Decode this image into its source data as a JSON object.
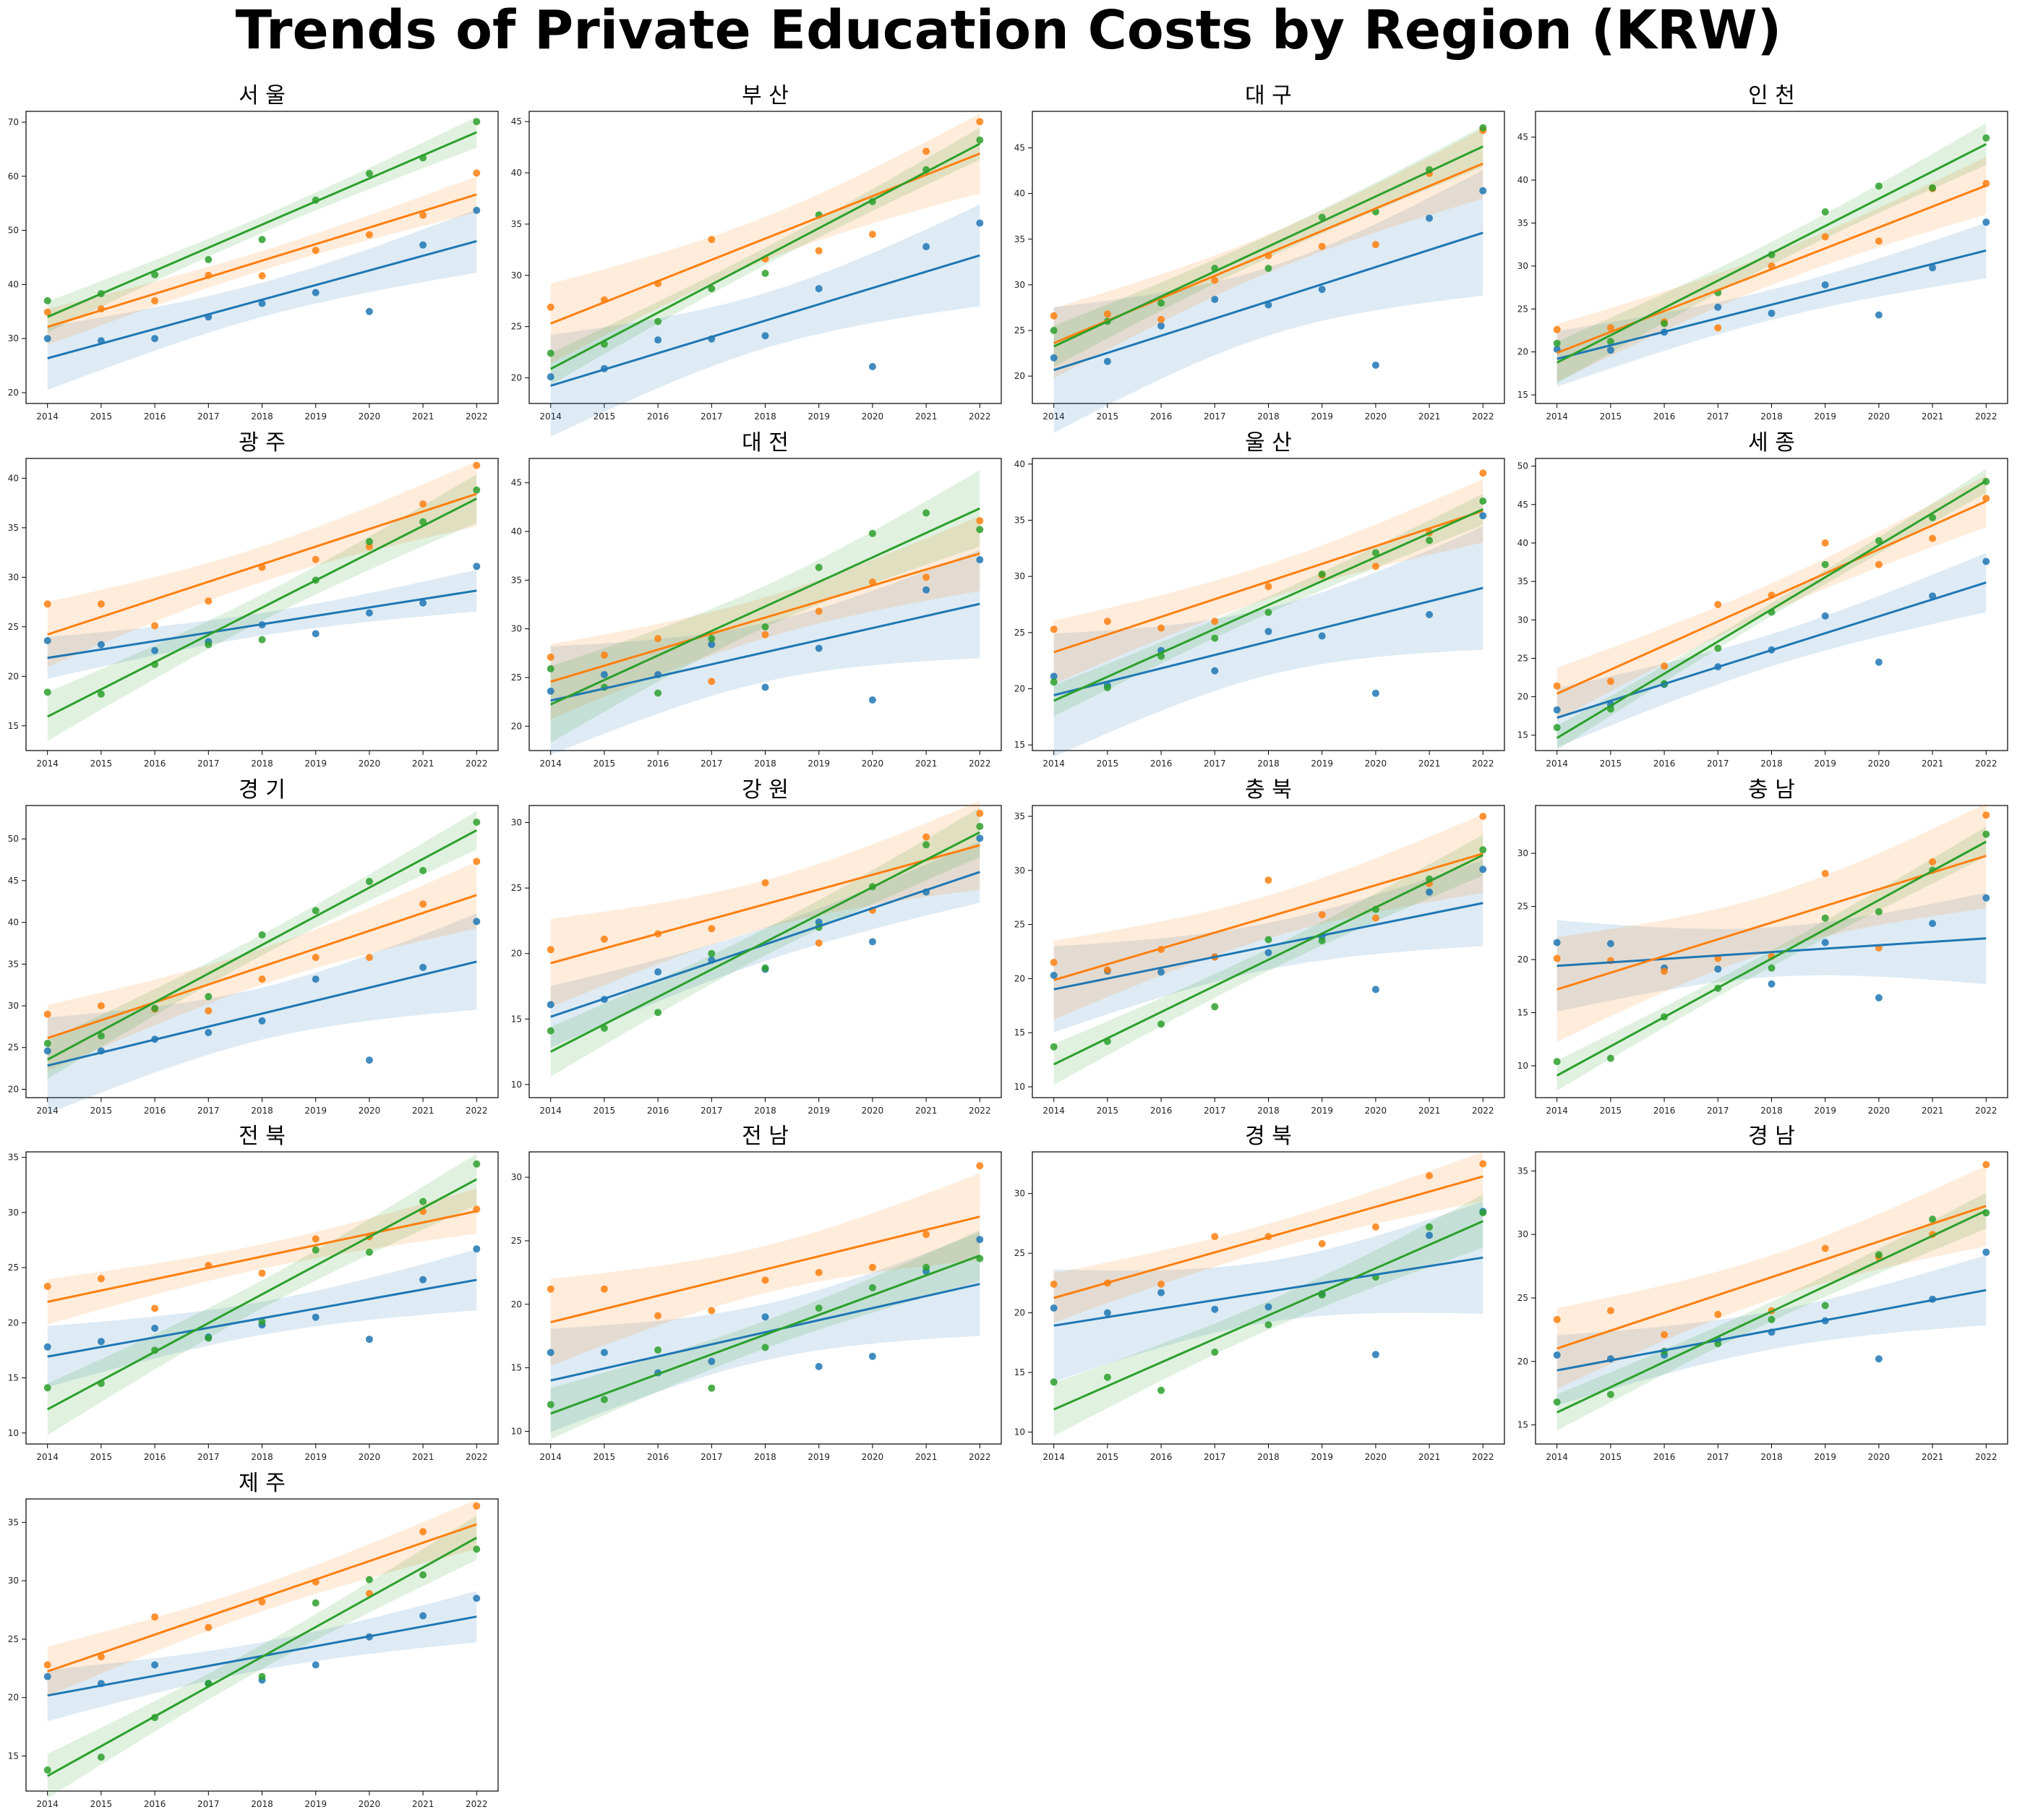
{
  "title": "Trends of Private Education Costs by Region (KRW)",
  "colors": [
    "#1f77b4",
    "#ff7f0e",
    "#2ca02c"
  ],
  "chart_data": [
    {
      "type": "scatter",
      "title": "서 울",
      "x": [
        2014,
        2015,
        2016,
        2017,
        2018,
        2019,
        2020,
        2021,
        2022
      ],
      "ylim": [
        18,
        72
      ],
      "yticks": [
        20,
        30,
        40,
        50,
        60,
        70
      ],
      "series": [
        {
          "values": [
            30.0,
            29.6,
            30.0,
            34.0,
            36.5,
            38.5,
            35.0,
            47.3,
            53.7
          ]
        },
        {
          "values": [
            34.9,
            35.5,
            37.0,
            41.7,
            41.6,
            46.3,
            49.2,
            52.8,
            60.6
          ]
        },
        {
          "values": [
            37.0,
            38.3,
            41.8,
            44.6,
            48.3,
            55.6,
            60.5,
            63.4,
            70.1
          ]
        }
      ]
    },
    {
      "type": "scatter",
      "title": "부 산",
      "x": [
        2014,
        2015,
        2016,
        2017,
        2018,
        2019,
        2020,
        2021,
        2022
      ],
      "ylim": [
        17.5,
        46
      ],
      "yticks": [
        20,
        25,
        30,
        35,
        40,
        45
      ],
      "series": [
        {
          "values": [
            20.1,
            20.9,
            23.7,
            23.8,
            24.1,
            28.7,
            21.1,
            32.8,
            35.1
          ]
        },
        {
          "values": [
            26.9,
            27.6,
            29.2,
            33.5,
            31.6,
            32.4,
            34.0,
            42.1,
            45.0
          ]
        },
        {
          "values": [
            22.4,
            23.3,
            25.5,
            28.7,
            30.2,
            35.9,
            37.2,
            40.3,
            43.2
          ]
        }
      ]
    },
    {
      "type": "scatter",
      "title": "대 구",
      "x": [
        2014,
        2015,
        2016,
        2017,
        2018,
        2019,
        2020,
        2021,
        2022
      ],
      "ylim": [
        17,
        49
      ],
      "yticks": [
        20,
        25,
        30,
        35,
        40,
        45
      ],
      "series": [
        {
          "values": [
            22.0,
            21.6,
            25.5,
            28.4,
            27.8,
            29.5,
            21.2,
            37.3,
            40.3
          ]
        },
        {
          "values": [
            26.6,
            26.8,
            26.2,
            30.5,
            33.2,
            34.2,
            34.4,
            42.2,
            46.9
          ]
        },
        {
          "values": [
            25.0,
            26.0,
            28.0,
            31.8,
            31.8,
            37.4,
            38.0,
            42.6,
            47.2
          ]
        }
      ]
    },
    {
      "type": "scatter",
      "title": "인 천",
      "x": [
        2014,
        2015,
        2016,
        2017,
        2018,
        2019,
        2020,
        2021,
        2022
      ],
      "ylim": [
        14,
        48
      ],
      "yticks": [
        15,
        20,
        25,
        30,
        35,
        40,
        45
      ],
      "series": [
        {
          "values": [
            20.3,
            20.2,
            22.3,
            25.2,
            24.5,
            27.8,
            24.3,
            29.8,
            35.1
          ]
        },
        {
          "values": [
            22.6,
            22.8,
            23.5,
            22.8,
            30.0,
            33.4,
            32.9,
            39.0,
            39.6
          ]
        },
        {
          "values": [
            21.0,
            21.2,
            23.3,
            26.9,
            31.3,
            36.3,
            39.3,
            39.1,
            44.9
          ]
        }
      ]
    },
    {
      "type": "scatter",
      "title": "광 주",
      "x": [
        2014,
        2015,
        2016,
        2017,
        2018,
        2019,
        2020,
        2021,
        2022
      ],
      "ylim": [
        12.5,
        42
      ],
      "yticks": [
        15,
        20,
        25,
        30,
        35,
        40
      ],
      "series": [
        {
          "values": [
            23.6,
            23.2,
            22.6,
            23.5,
            25.2,
            24.3,
            26.4,
            27.4,
            31.1
          ]
        },
        {
          "values": [
            27.3,
            27.3,
            25.1,
            27.6,
            31.0,
            31.8,
            33.1,
            37.4,
            41.3
          ]
        },
        {
          "values": [
            18.4,
            18.2,
            21.2,
            23.2,
            23.7,
            29.7,
            33.6,
            35.6,
            38.8
          ]
        }
      ]
    },
    {
      "type": "scatter",
      "title": "대 전",
      "x": [
        2014,
        2015,
        2016,
        2017,
        2018,
        2019,
        2020,
        2021,
        2022
      ],
      "ylim": [
        17.5,
        47.5
      ],
      "yticks": [
        20,
        25,
        30,
        35,
        40,
        45
      ],
      "series": [
        {
          "values": [
            23.6,
            25.3,
            25.3,
            28.4,
            24.0,
            28.0,
            22.7,
            34.0,
            37.1
          ]
        },
        {
          "values": [
            27.1,
            27.3,
            29.0,
            24.6,
            29.4,
            31.8,
            34.8,
            35.3,
            41.1
          ]
        },
        {
          "values": [
            25.9,
            24.0,
            23.4,
            29.0,
            30.2,
            36.3,
            39.8,
            41.9,
            40.2
          ]
        }
      ]
    },
    {
      "type": "scatter",
      "title": "울 산",
      "x": [
        2014,
        2015,
        2016,
        2017,
        2018,
        2019,
        2020,
        2021,
        2022
      ],
      "ylim": [
        14.5,
        40.5
      ],
      "yticks": [
        15,
        20,
        25,
        30,
        35,
        40
      ],
      "series": [
        {
          "values": [
            21.1,
            20.3,
            23.4,
            21.6,
            25.1,
            24.7,
            19.6,
            26.6,
            35.4
          ]
        },
        {
          "values": [
            25.3,
            26.0,
            25.4,
            26.0,
            29.1,
            30.1,
            30.9,
            33.9,
            39.2
          ]
        },
        {
          "values": [
            20.6,
            20.1,
            22.9,
            24.5,
            26.8,
            30.2,
            32.1,
            33.2,
            36.7
          ]
        }
      ]
    },
    {
      "type": "scatter",
      "title": "세 종",
      "x": [
        2014,
        2015,
        2016,
        2017,
        2018,
        2019,
        2020,
        2021,
        2022
      ],
      "ylim": [
        13,
        51
      ],
      "yticks": [
        15,
        20,
        25,
        30,
        35,
        40,
        45,
        50
      ],
      "series": [
        {
          "values": [
            18.3,
            19.0,
            21.6,
            23.9,
            26.1,
            30.5,
            24.5,
            33.1,
            37.6
          ]
        },
        {
          "values": [
            21.4,
            22.0,
            24.0,
            32.0,
            33.2,
            40.0,
            37.2,
            40.6,
            45.8
          ]
        },
        {
          "values": [
            16.0,
            18.4,
            21.7,
            26.3,
            31.0,
            37.2,
            40.3,
            43.3,
            48.0
          ]
        }
      ]
    },
    {
      "type": "scatter",
      "title": "경 기",
      "x": [
        2014,
        2015,
        2016,
        2017,
        2018,
        2019,
        2020,
        2021,
        2022
      ],
      "ylim": [
        19,
        54
      ],
      "yticks": [
        20,
        25,
        30,
        35,
        40,
        45,
        50
      ],
      "series": [
        {
          "values": [
            24.6,
            24.6,
            26.0,
            26.8,
            28.2,
            33.2,
            23.5,
            34.6,
            40.1
          ]
        },
        {
          "values": [
            29.0,
            30.0,
            29.6,
            29.4,
            33.2,
            35.8,
            35.8,
            42.2,
            47.3
          ]
        },
        {
          "values": [
            25.5,
            26.4,
            29.7,
            31.1,
            38.5,
            41.4,
            44.9,
            46.2,
            52.0
          ]
        }
      ]
    },
    {
      "type": "scatter",
      "title": "강 원",
      "x": [
        2014,
        2015,
        2016,
        2017,
        2018,
        2019,
        2020,
        2021,
        2022
      ],
      "ylim": [
        9,
        31.3
      ],
      "yticks": [
        10,
        15,
        20,
        25,
        30
      ],
      "series": [
        {
          "values": [
            16.1,
            16.5,
            18.6,
            19.5,
            18.8,
            22.4,
            20.9,
            24.7,
            28.8
          ]
        },
        {
          "values": [
            20.3,
            21.1,
            21.5,
            21.9,
            25.4,
            20.8,
            23.3,
            28.9,
            30.7
          ]
        },
        {
          "values": [
            14.1,
            14.3,
            15.5,
            20.0,
            18.9,
            22.0,
            25.1,
            28.3,
            29.7
          ]
        }
      ]
    },
    {
      "type": "scatter",
      "title": "충 북",
      "x": [
        2014,
        2015,
        2016,
        2017,
        2018,
        2019,
        2020,
        2021,
        2022
      ],
      "ylim": [
        9,
        36
      ],
      "yticks": [
        10,
        15,
        20,
        25,
        30,
        35
      ],
      "series": [
        {
          "values": [
            20.3,
            20.7,
            20.6,
            22.0,
            22.4,
            23.9,
            19.0,
            28.0,
            30.1
          ]
        },
        {
          "values": [
            21.5,
            20.8,
            22.7,
            22.0,
            29.1,
            25.9,
            25.6,
            28.8,
            35.0
          ]
        },
        {
          "values": [
            13.7,
            14.2,
            15.8,
            17.4,
            23.6,
            23.5,
            26.4,
            29.2,
            31.9
          ]
        }
      ]
    },
    {
      "type": "scatter",
      "title": "충 남",
      "x": [
        2014,
        2015,
        2016,
        2017,
        2018,
        2019,
        2020,
        2021,
        2022
      ],
      "ylim": [
        7,
        34.5
      ],
      "yticks": [
        10,
        15,
        20,
        25,
        30
      ],
      "series": [
        {
          "values": [
            21.6,
            21.5,
            19.2,
            19.1,
            17.7,
            21.6,
            16.4,
            23.4,
            25.8
          ]
        },
        {
          "values": [
            20.1,
            19.9,
            18.9,
            20.1,
            20.3,
            28.1,
            21.1,
            29.2,
            33.6
          ]
        },
        {
          "values": [
            10.4,
            10.7,
            14.6,
            17.3,
            19.2,
            23.9,
            24.5,
            28.4,
            31.8
          ]
        }
      ]
    },
    {
      "type": "scatter",
      "title": "전 북",
      "x": [
        2014,
        2015,
        2016,
        2017,
        2018,
        2019,
        2020,
        2021,
        2022
      ],
      "ylim": [
        9,
        35.5
      ],
      "yticks": [
        10,
        15,
        20,
        25,
        30,
        35
      ],
      "series": [
        {
          "values": [
            17.8,
            18.3,
            19.5,
            18.7,
            19.8,
            20.5,
            18.5,
            23.9,
            26.7
          ]
        },
        {
          "values": [
            23.3,
            24.0,
            21.3,
            25.2,
            24.5,
            27.6,
            27.8,
            30.1,
            30.3
          ]
        },
        {
          "values": [
            14.1,
            14.5,
            17.5,
            18.6,
            20.1,
            26.6,
            26.4,
            31.0,
            34.4
          ]
        }
      ]
    },
    {
      "type": "scatter",
      "title": "전 남",
      "x": [
        2014,
        2015,
        2016,
        2017,
        2018,
        2019,
        2020,
        2021,
        2022
      ],
      "ylim": [
        9,
        32
      ],
      "yticks": [
        10,
        15,
        20,
        25,
        30
      ],
      "series": [
        {
          "values": [
            16.2,
            16.2,
            14.6,
            15.5,
            19.0,
            15.1,
            15.9,
            22.6,
            25.1
          ]
        },
        {
          "values": [
            21.2,
            21.2,
            19.1,
            19.5,
            21.9,
            22.5,
            22.9,
            25.5,
            30.9
          ]
        },
        {
          "values": [
            12.1,
            12.5,
            16.4,
            13.4,
            16.6,
            19.7,
            21.3,
            22.9,
            23.6
          ]
        }
      ]
    },
    {
      "type": "scatter",
      "title": "경 북",
      "x": [
        2014,
        2015,
        2016,
        2017,
        2018,
        2019,
        2020,
        2021,
        2022
      ],
      "ylim": [
        9,
        33.5
      ],
      "yticks": [
        10,
        15,
        20,
        25,
        30
      ],
      "series": [
        {
          "values": [
            20.4,
            20.0,
            21.7,
            20.3,
            20.5,
            21.6,
            16.5,
            26.5,
            28.5
          ]
        },
        {
          "values": [
            22.4,
            22.5,
            22.4,
            26.4,
            26.4,
            25.8,
            27.2,
            31.5,
            32.5
          ]
        },
        {
          "values": [
            14.2,
            14.6,
            13.5,
            16.7,
            19.0,
            21.5,
            23.0,
            27.2,
            28.4
          ]
        }
      ]
    },
    {
      "type": "scatter",
      "title": "경 남",
      "x": [
        2014,
        2015,
        2016,
        2017,
        2018,
        2019,
        2020,
        2021,
        2022
      ],
      "ylim": [
        13.5,
        36.5
      ],
      "yticks": [
        15,
        20,
        25,
        30,
        35
      ],
      "series": [
        {
          "values": [
            20.5,
            20.2,
            20.5,
            21.7,
            22.3,
            23.2,
            20.2,
            24.9,
            28.6
          ]
        },
        {
          "values": [
            23.3,
            24.0,
            22.1,
            23.7,
            24.0,
            28.9,
            28.2,
            30.0,
            35.5
          ]
        },
        {
          "values": [
            16.8,
            17.4,
            20.8,
            21.4,
            23.3,
            24.4,
            28.4,
            31.2,
            31.7
          ]
        }
      ]
    },
    {
      "type": "scatter",
      "title": "제 주",
      "x": [
        2014,
        2015,
        2016,
        2017,
        2018,
        2019,
        2020,
        2021,
        2022
      ],
      "ylim": [
        12,
        37
      ],
      "yticks": [
        15,
        20,
        25,
        30,
        35
      ],
      "series": [
        {
          "values": [
            21.8,
            21.2,
            22.8,
            21.2,
            21.5,
            22.8,
            25.2,
            27.0,
            28.5
          ]
        },
        {
          "values": [
            22.8,
            23.5,
            26.9,
            26.0,
            28.2,
            29.9,
            28.9,
            34.2,
            36.4
          ]
        },
        {
          "values": [
            13.8,
            14.9,
            18.3,
            21.2,
            21.8,
            28.1,
            30.1,
            30.5,
            32.7
          ]
        }
      ]
    }
  ]
}
